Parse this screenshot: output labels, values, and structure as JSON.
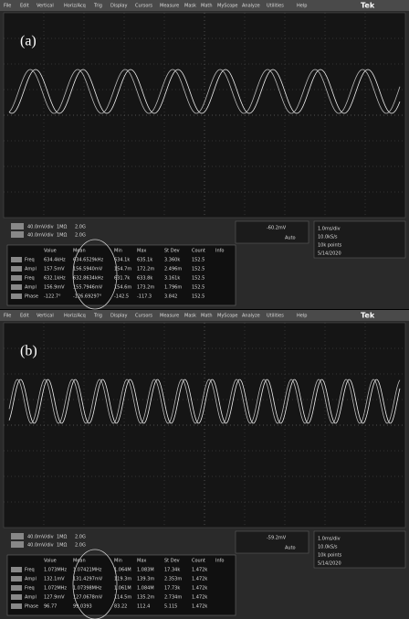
{
  "panels": [
    {
      "label": "(a)",
      "brand": "Tek",
      "menu": [
        "File",
        "Edit",
        "Vertical",
        "Horiz/Acq",
        "Trig",
        "Display",
        "Cursors",
        "Measure",
        "Mask",
        "Math",
        "MyScope",
        "Analyze",
        "Utilities",
        "Help"
      ],
      "channels": [
        [
          "40.0mV/div",
          "1MΩ",
          "2.0G"
        ],
        [
          "40.0mV/div",
          "1MΩ",
          "2.0G"
        ]
      ],
      "trigger": "-60.2mV",
      "trigger_mode": "Auto",
      "timebase": [
        "1.0ms/div",
        "10.0kS/s",
        "10k points",
        "5/14/2020"
      ],
      "table": {
        "headers": [
          "Value",
          "Mean",
          "Min",
          "Max",
          "St Dev",
          "Count",
          "Info"
        ],
        "rows": [
          [
            "Freq",
            "634.4kHz",
            "634.6529kHz",
            "634.1k",
            "635.1k",
            "3.360k",
            "152.5"
          ],
          [
            "Ampl",
            "157.5mV",
            "156.5940mV",
            "154.7m",
            "172.2m",
            "2.496m",
            "152.5"
          ],
          [
            "Freq",
            "632.1kHz",
            "632.8634kHz",
            "631.7k",
            "633.8k",
            "3.161k",
            "152.5"
          ],
          [
            "Ampl",
            "156.9mV",
            "155.7946mV",
            "154.6m",
            "173.2m",
            "1.796m",
            "152.5"
          ],
          [
            "Phase",
            "-122.7°",
            "-126.69297°",
            "-142.5",
            "-117.3",
            "3.842",
            "152.5"
          ]
        ]
      }
    },
    {
      "label": "(b)",
      "brand": "Tek",
      "menu": [
        "File",
        "Edit",
        "Vertical",
        "Horiz/Acq",
        "Trig",
        "Display",
        "Cursors",
        "Measure",
        "Mask",
        "Math",
        "MyScope",
        "Analyze",
        "Utilities",
        "Help"
      ],
      "channels": [
        [
          "40.0mV/div",
          "1MΩ",
          "2.0G"
        ],
        [
          "40.0mV/div",
          "1MΩ",
          "2.0G"
        ]
      ],
      "trigger": "-59.2mV",
      "trigger_mode": "Auto",
      "timebase": [
        "1.0ms/div",
        "10.0kS/s",
        "10k points",
        "5/14/2020"
      ],
      "table": {
        "headers": [
          "Value",
          "Mean",
          "Min",
          "Max",
          "St Dev",
          "Count",
          "Info"
        ],
        "rows": [
          [
            "Freq",
            "1.073MHz",
            "1.07421MHz",
            "1.064M",
            "1.083M",
            "17.34k",
            "1.472k"
          ],
          [
            "Ampl",
            "132.1mV",
            "131.4297mV",
            "119.3m",
            "139.3m",
            "2.353m",
            "1.472k"
          ],
          [
            "Freq",
            "1.072MHz",
            "1.07398MHz",
            "1.061M",
            "1.084M",
            "17.73k",
            "1.472k"
          ],
          [
            "Ampl",
            "127.9mV",
            "127.0678mV",
            "114.5m",
            "135.2m",
            "2.734m",
            "1.472k"
          ],
          [
            "Phase",
            "96.77",
            "99.0393",
            "83.22",
            "112.4",
            "5.115",
            "1.472k"
          ]
        ]
      }
    }
  ]
}
